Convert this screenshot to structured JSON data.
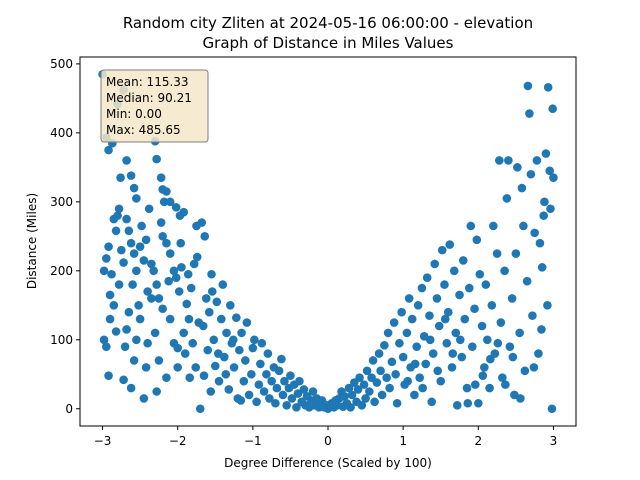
{
  "chart_data": {
    "type": "scatter",
    "title_line1": "Random city Zliten at 2024-05-16 06:00:00  - elevation",
    "title_line2": "Graph of Distance in Miles Values",
    "xlabel": "Degree Difference (Scaled by 100)",
    "ylabel": "Distance (Miles)",
    "xlim": [
      -3.3,
      3.3
    ],
    "ylim": [
      -25,
      510
    ],
    "x_ticks": [
      -3,
      -2,
      -1,
      0,
      1,
      2,
      3
    ],
    "y_ticks": [
      0,
      100,
      200,
      300,
      400,
      500
    ],
    "grid": false,
    "point_color": "#1f77b4",
    "stats_box": {
      "lines": [
        "Mean: 115.33",
        "Median: 90.21",
        "Min: 0.00",
        "Max: 485.65"
      ],
      "background": "#f5e6c8",
      "border": "#7f7f7f"
    },
    "points": [
      [
        -3.0,
        485
      ],
      [
        -2.95,
        393
      ],
      [
        -2.92,
        375
      ],
      [
        -2.87,
        385
      ],
      [
        -2.8,
        442
      ],
      [
        -2.72,
        462
      ],
      [
        -2.68,
        360
      ],
      [
        -2.62,
        338
      ],
      [
        -2.58,
        320
      ],
      [
        -2.55,
        305
      ],
      [
        -2.3,
        388
      ],
      [
        -2.28,
        362
      ],
      [
        -2.22,
        335
      ],
      [
        -2.2,
        318
      ],
      [
        -2.18,
        300
      ],
      [
        -2.15,
        315
      ],
      [
        -2.1,
        300
      ],
      [
        -2.02,
        292
      ],
      [
        -1.97,
        280
      ],
      [
        -1.92,
        285
      ],
      [
        -2.98,
        200
      ],
      [
        -2.95,
        218
      ],
      [
        -2.92,
        235
      ],
      [
        -2.88,
        195
      ],
      [
        -2.85,
        275
      ],
      [
        -2.82,
        258
      ],
      [
        -2.8,
        280
      ],
      [
        -2.78,
        290
      ],
      [
        -2.75,
        230
      ],
      [
        -2.72,
        212
      ],
      [
        -2.68,
        275
      ],
      [
        -2.65,
        258
      ],
      [
        -2.62,
        240
      ],
      [
        -2.58,
        225
      ],
      [
        -2.55,
        200
      ],
      [
        -2.5,
        235
      ],
      [
        -2.48,
        265
      ],
      [
        -2.45,
        215
      ],
      [
        -2.42,
        245
      ],
      [
        -2.38,
        290
      ],
      [
        -2.35,
        210
      ],
      [
        -2.32,
        200
      ],
      [
        -2.28,
        180
      ],
      [
        -2.25,
        160
      ],
      [
        -2.22,
        270
      ],
      [
        -2.2,
        250
      ],
      [
        -2.15,
        240
      ],
      [
        -2.1,
        225
      ],
      [
        -2.05,
        200
      ],
      [
        -2.02,
        190
      ],
      [
        -2.98,
        100
      ],
      [
        -2.95,
        90
      ],
      [
        -2.92,
        48
      ],
      [
        -2.9,
        130
      ],
      [
        -2.85,
        150
      ],
      [
        -2.82,
        112
      ],
      [
        -2.78,
        180
      ],
      [
        -2.72,
        42
      ],
      [
        -2.7,
        90
      ],
      [
        -2.68,
        115
      ],
      [
        -2.65,
        140
      ],
      [
        -2.62,
        30
      ],
      [
        -2.58,
        70
      ],
      [
        -2.55,
        100
      ],
      [
        -2.5,
        130
      ],
      [
        -2.45,
        15
      ],
      [
        -2.42,
        60
      ],
      [
        -2.4,
        95
      ],
      [
        -2.35,
        160
      ],
      [
        -2.3,
        110
      ],
      [
        -2.28,
        25
      ],
      [
        -2.25,
        70
      ],
      [
        -2.2,
        145
      ],
      [
        -2.15,
        45
      ],
      [
        -2.1,
        130
      ],
      [
        -2.05,
        95
      ],
      [
        -2.0,
        88
      ],
      [
        -1.98,
        170
      ],
      [
        -1.95,
        205
      ],
      [
        -1.92,
        110
      ],
      [
        -1.9,
        80
      ],
      [
        -1.88,
        152
      ],
      [
        -1.85,
        130
      ],
      [
        -1.82,
        175
      ],
      [
        -1.8,
        95
      ],
      [
        -1.78,
        210
      ],
      [
        -1.75,
        265
      ],
      [
        -1.72,
        125
      ],
      [
        -1.7,
        0
      ],
      [
        -1.68,
        270
      ],
      [
        -1.65,
        48
      ],
      [
        -1.62,
        160
      ],
      [
        -1.6,
        85
      ],
      [
        -1.58,
        140
      ],
      [
        -1.55,
        195
      ],
      [
        -1.52,
        100
      ],
      [
        -1.5,
        62
      ],
      [
        -1.48,
        155
      ],
      [
        -1.45,
        40
      ],
      [
        -1.42,
        130
      ],
      [
        -1.4,
        180
      ],
      [
        -1.38,
        75
      ],
      [
        -1.35,
        110
      ],
      [
        -1.32,
        28
      ],
      [
        -1.3,
        150
      ],
      [
        -1.28,
        95
      ],
      [
        -1.25,
        60
      ],
      [
        -1.22,
        132
      ],
      [
        -1.2,
        15
      ],
      [
        -1.18,
        85
      ],
      [
        -1.15,
        110
      ],
      [
        -1.12,
        40
      ],
      [
        -1.1,
        70
      ],
      [
        -1.08,
        125
      ],
      [
        -1.05,
        20
      ],
      [
        -1.02,
        50
      ],
      [
        -1.0,
        88
      ],
      [
        -0.98,
        100
      ],
      [
        -0.95,
        10
      ],
      [
        -0.92,
        35
      ],
      [
        -0.9,
        65
      ],
      [
        -0.88,
        95
      ],
      [
        -0.85,
        25
      ],
      [
        -0.82,
        50
      ],
      [
        -0.8,
        80
      ],
      [
        -0.78,
        15
      ],
      [
        -0.75,
        40
      ],
      [
        -0.72,
        60
      ],
      [
        -0.7,
        8
      ],
      [
        -0.68,
        30
      ],
      [
        -0.65,
        55
      ],
      [
        -0.62,
        72
      ],
      [
        -0.6,
        20
      ],
      [
        -0.58,
        40
      ],
      [
        -0.55,
        5
      ],
      [
        -0.52,
        30
      ],
      [
        -0.5,
        48
      ],
      [
        -0.48,
        15
      ],
      [
        -0.45,
        35
      ],
      [
        -0.42,
        2
      ],
      [
        -0.4,
        22
      ],
      [
        -0.38,
        40
      ],
      [
        -0.35,
        10
      ],
      [
        -0.32,
        28
      ],
      [
        -0.3,
        5
      ],
      [
        -0.28,
        18
      ],
      [
        -0.25,
        2
      ],
      [
        -0.22,
        12
      ],
      [
        -0.2,
        25
      ],
      [
        -0.18,
        5
      ],
      [
        -0.15,
        15
      ],
      [
        -0.12,
        2
      ],
      [
        -0.1,
        8
      ],
      [
        -0.08,
        12
      ],
      [
        -0.05,
        2
      ],
      [
        -0.02,
        5
      ],
      [
        0.0,
        0
      ],
      [
        0.02,
        4
      ],
      [
        0.05,
        8
      ],
      [
        0.08,
        2
      ],
      [
        0.1,
        12
      ],
      [
        0.12,
        5
      ],
      [
        0.15,
        15
      ],
      [
        0.18,
        25
      ],
      [
        0.2,
        3
      ],
      [
        0.22,
        18
      ],
      [
        0.25,
        8
      ],
      [
        0.28,
        30
      ],
      [
        0.3,
        2
      ],
      [
        0.32,
        20
      ],
      [
        0.35,
        38
      ],
      [
        0.38,
        10
      ],
      [
        0.4,
        28
      ],
      [
        0.42,
        45
      ],
      [
        0.45,
        5
      ],
      [
        0.48,
        35
      ],
      [
        0.5,
        15
      ],
      [
        0.52,
        55
      ],
      [
        0.55,
        25
      ],
      [
        0.58,
        45
      ],
      [
        0.6,
        70
      ],
      [
        0.62,
        10
      ],
      [
        0.65,
        38
      ],
      [
        0.68,
        80
      ],
      [
        0.7,
        55
      ],
      [
        0.72,
        20
      ],
      [
        0.75,
        92
      ],
      [
        0.78,
        45
      ],
      [
        0.8,
        110
      ],
      [
        0.82,
        30
      ],
      [
        0.85,
        68
      ],
      [
        0.88,
        125
      ],
      [
        0.9,
        50
      ],
      [
        0.92,
        8
      ],
      [
        0.95,
        95
      ],
      [
        0.98,
        140
      ],
      [
        1.0,
        75
      ],
      [
        1.02,
        35
      ],
      [
        1.05,
        110
      ],
      [
        1.08,
        160
      ],
      [
        1.1,
        60
      ],
      [
        1.12,
        130
      ],
      [
        1.15,
        20
      ],
      [
        1.18,
        90
      ],
      [
        1.2,
        150
      ],
      [
        1.22,
        45
      ],
      [
        1.25,
        175
      ],
      [
        1.28,
        105
      ],
      [
        1.3,
        65
      ],
      [
        1.32,
        190
      ],
      [
        1.35,
        135
      ],
      [
        1.38,
        10
      ],
      [
        1.4,
        80
      ],
      [
        1.42,
        210
      ],
      [
        1.45,
        160
      ],
      [
        1.48,
        120
      ],
      [
        1.5,
        40
      ],
      [
        1.52,
        230
      ],
      [
        1.55,
        180
      ],
      [
        1.58,
        95
      ],
      [
        1.6,
        140
      ],
      [
        1.62,
        238
      ],
      [
        1.65,
        60
      ],
      [
        1.68,
        200
      ],
      [
        1.7,
        110
      ],
      [
        1.72,
        5
      ],
      [
        1.75,
        165
      ],
      [
        1.78,
        75
      ],
      [
        1.8,
        215
      ],
      [
        1.82,
        130
      ],
      [
        1.85,
        30
      ],
      [
        1.88,
        175
      ],
      [
        1.9,
        265
      ],
      [
        1.92,
        90
      ],
      [
        1.95,
        145
      ],
      [
        1.98,
        245
      ],
      [
        2.0,
        8
      ],
      [
        2.02,
        195
      ],
      [
        2.05,
        120
      ],
      [
        2.08,
        60
      ],
      [
        2.1,
        180
      ],
      [
        2.12,
        100
      ],
      [
        2.15,
        30
      ],
      [
        2.18,
        150
      ],
      [
        2.2,
        265
      ],
      [
        2.22,
        80
      ],
      [
        2.25,
        225
      ],
      [
        2.28,
        360
      ],
      [
        2.3,
        125
      ],
      [
        2.32,
        45
      ],
      [
        2.35,
        200
      ],
      [
        2.38,
        305
      ],
      [
        2.4,
        360
      ],
      [
        2.42,
        90
      ],
      [
        2.45,
        160
      ],
      [
        2.48,
        20
      ],
      [
        2.5,
        225
      ],
      [
        2.52,
        350
      ],
      [
        2.55,
        110
      ],
      [
        2.58,
        320
      ],
      [
        2.6,
        265
      ],
      [
        2.62,
        55
      ],
      [
        2.65,
        185
      ],
      [
        2.68,
        428
      ],
      [
        2.7,
        340
      ],
      [
        2.72,
        135
      ],
      [
        2.75,
        255
      ],
      [
        2.78,
        360
      ],
      [
        2.8,
        80
      ],
      [
        2.82,
        240
      ],
      [
        2.85,
        205
      ],
      [
        2.88,
        300
      ],
      [
        2.9,
        370
      ],
      [
        2.92,
        150
      ],
      [
        2.95,
        345
      ],
      [
        2.98,
        0
      ],
      [
        3.0,
        335
      ],
      [
        2.66,
        468
      ],
      [
        2.93,
        466
      ],
      [
        2.99,
        435
      ],
      [
        2.96,
        290
      ],
      [
        2.87,
        280
      ],
      [
        2.84,
        115
      ],
      [
        2.74,
        60
      ],
      [
        2.56,
        15
      ],
      [
        2.46,
        75
      ],
      [
        2.36,
        35
      ],
      [
        2.26,
        95
      ],
      [
        2.16,
        72
      ],
      [
        2.06,
        48
      ],
      [
        1.96,
        35
      ],
      [
        1.86,
        8
      ],
      [
        1.76,
        100
      ],
      [
        1.66,
        80
      ],
      [
        1.56,
        130
      ],
      [
        1.46,
        55
      ],
      [
        1.36,
        100
      ],
      [
        1.26,
        30
      ],
      [
        1.16,
        65
      ],
      [
        1.06,
        40
      ],
      [
        -2.0,
        60
      ],
      [
        -1.96,
        240
      ],
      [
        -1.86,
        195
      ],
      [
        -1.76,
        60
      ],
      [
        -1.66,
        120
      ],
      [
        -1.56,
        25
      ],
      [
        -1.46,
        80
      ],
      [
        -1.36,
        50
      ],
      [
        -1.26,
        100
      ],
      [
        -1.16,
        12
      ],
      [
        -2.6,
        180
      ],
      [
        -2.4,
        170
      ],
      [
        -2.9,
        165
      ],
      [
        -2.76,
        335
      ],
      [
        -2.52,
        150
      ],
      [
        -2.12,
        185
      ],
      [
        -1.84,
        45
      ],
      [
        -1.74,
        220
      ],
      [
        -1.64,
        250
      ],
      [
        -1.54,
        170
      ]
    ]
  }
}
